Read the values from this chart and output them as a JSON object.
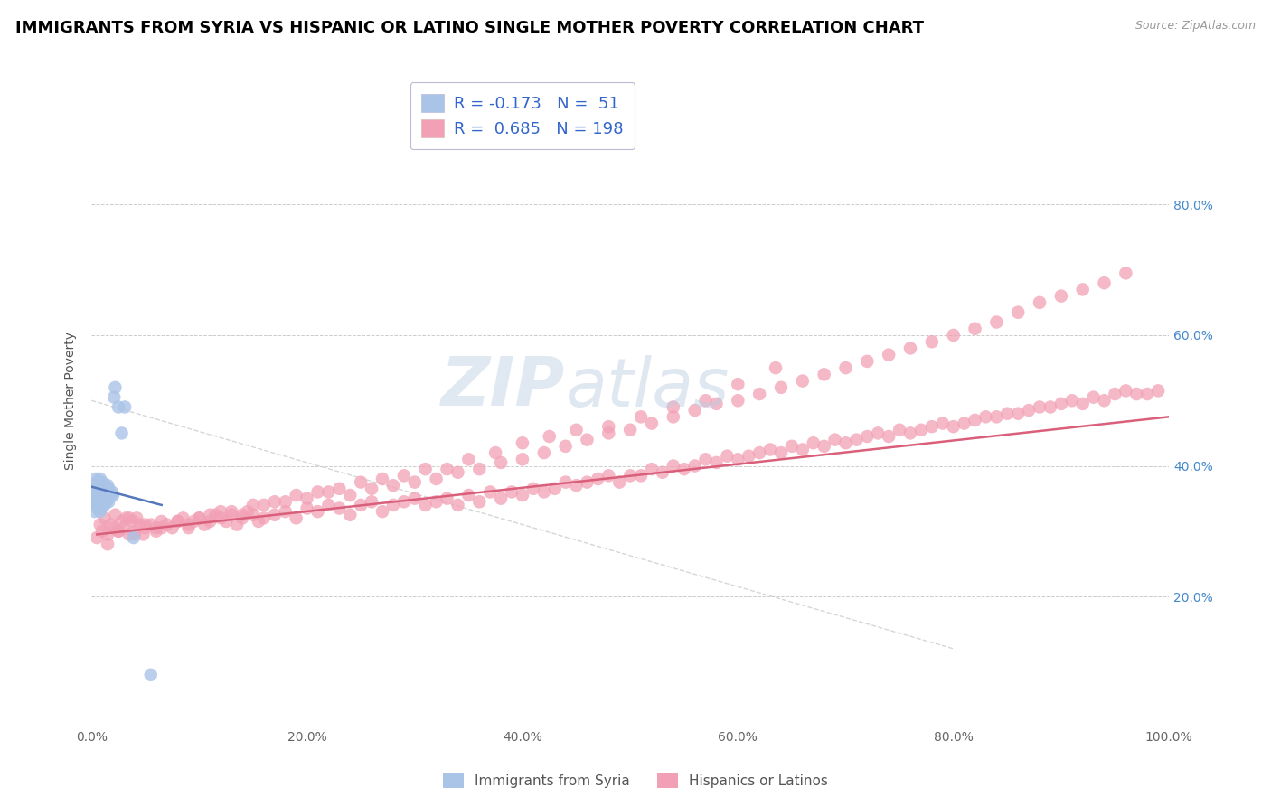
{
  "title": "IMMIGRANTS FROM SYRIA VS HISPANIC OR LATINO SINGLE MOTHER POVERTY CORRELATION CHART",
  "source": "Source: ZipAtlas.com",
  "ylabel": "Single Mother Poverty",
  "xlim": [
    0.0,
    1.0
  ],
  "ylim": [
    0.0,
    1.0
  ],
  "xticks": [
    0.0,
    0.2,
    0.4,
    0.6,
    0.8,
    1.0
  ],
  "xtick_labels": [
    "0.0%",
    "20.0%",
    "40.0%",
    "60.0%",
    "80.0%",
    "100.0%"
  ],
  "ytick_positions": [
    0.2,
    0.4,
    0.6,
    0.8
  ],
  "ytick_labels": [
    "20.0%",
    "40.0%",
    "60.0%",
    "80.0%"
  ],
  "legend_R1": "-0.173",
  "legend_N1": "51",
  "legend_R2": "0.685",
  "legend_N2": "198",
  "blue_color": "#aac4e8",
  "pink_color": "#f2a0b5",
  "blue_line_color": "#5577bb",
  "pink_line_color": "#d95f7a",
  "title_fontsize": 13,
  "axis_label_fontsize": 10,
  "tick_fontsize": 10,
  "legend_fontsize": 13,
  "blue_scatter_x": [
    0.001,
    0.002,
    0.002,
    0.003,
    0.003,
    0.003,
    0.004,
    0.004,
    0.004,
    0.005,
    0.005,
    0.005,
    0.006,
    0.006,
    0.006,
    0.007,
    0.007,
    0.007,
    0.008,
    0.008,
    0.008,
    0.008,
    0.009,
    0.009,
    0.009,
    0.01,
    0.01,
    0.01,
    0.011,
    0.011,
    0.012,
    0.012,
    0.013,
    0.013,
    0.014,
    0.014,
    0.015,
    0.015,
    0.016,
    0.016,
    0.017,
    0.018,
    0.019,
    0.02,
    0.021,
    0.022,
    0.025,
    0.028,
    0.031,
    0.039,
    0.055
  ],
  "blue_scatter_y": [
    0.34,
    0.355,
    0.37,
    0.33,
    0.35,
    0.37,
    0.34,
    0.355,
    0.38,
    0.34,
    0.36,
    0.375,
    0.335,
    0.35,
    0.37,
    0.34,
    0.36,
    0.375,
    0.33,
    0.345,
    0.36,
    0.38,
    0.335,
    0.355,
    0.37,
    0.34,
    0.355,
    0.375,
    0.345,
    0.365,
    0.34,
    0.36,
    0.35,
    0.37,
    0.345,
    0.365,
    0.35,
    0.37,
    0.345,
    0.365,
    0.36,
    0.355,
    0.36,
    0.355,
    0.505,
    0.52,
    0.49,
    0.45,
    0.49,
    0.29,
    0.08
  ],
  "pink_scatter_x": [
    0.005,
    0.008,
    0.01,
    0.012,
    0.015,
    0.018,
    0.02,
    0.022,
    0.025,
    0.028,
    0.03,
    0.032,
    0.035,
    0.038,
    0.04,
    0.042,
    0.045,
    0.048,
    0.05,
    0.055,
    0.06,
    0.065,
    0.07,
    0.075,
    0.08,
    0.085,
    0.09,
    0.095,
    0.1,
    0.105,
    0.11,
    0.115,
    0.12,
    0.125,
    0.13,
    0.135,
    0.14,
    0.145,
    0.15,
    0.155,
    0.16,
    0.17,
    0.18,
    0.19,
    0.2,
    0.21,
    0.22,
    0.23,
    0.24,
    0.25,
    0.26,
    0.27,
    0.28,
    0.29,
    0.3,
    0.31,
    0.32,
    0.33,
    0.34,
    0.35,
    0.36,
    0.37,
    0.38,
    0.39,
    0.4,
    0.41,
    0.42,
    0.43,
    0.44,
    0.45,
    0.46,
    0.47,
    0.48,
    0.49,
    0.5,
    0.51,
    0.52,
    0.53,
    0.54,
    0.55,
    0.56,
    0.57,
    0.58,
    0.59,
    0.6,
    0.61,
    0.62,
    0.63,
    0.64,
    0.65,
    0.66,
    0.67,
    0.68,
    0.69,
    0.7,
    0.71,
    0.72,
    0.73,
    0.74,
    0.75,
    0.76,
    0.77,
    0.78,
    0.79,
    0.8,
    0.81,
    0.82,
    0.83,
    0.84,
    0.85,
    0.86,
    0.87,
    0.88,
    0.89,
    0.9,
    0.91,
    0.92,
    0.93,
    0.94,
    0.95,
    0.96,
    0.97,
    0.98,
    0.99,
    0.015,
    0.025,
    0.035,
    0.05,
    0.065,
    0.08,
    0.1,
    0.12,
    0.14,
    0.16,
    0.18,
    0.2,
    0.22,
    0.24,
    0.26,
    0.28,
    0.3,
    0.32,
    0.34,
    0.36,
    0.38,
    0.4,
    0.42,
    0.44,
    0.46,
    0.48,
    0.5,
    0.52,
    0.54,
    0.56,
    0.58,
    0.6,
    0.62,
    0.64,
    0.66,
    0.68,
    0.7,
    0.72,
    0.74,
    0.76,
    0.78,
    0.8,
    0.82,
    0.84,
    0.86,
    0.88,
    0.9,
    0.92,
    0.94,
    0.96,
    0.04,
    0.06,
    0.09,
    0.11,
    0.13,
    0.15,
    0.17,
    0.19,
    0.21,
    0.23,
    0.25,
    0.27,
    0.29,
    0.31,
    0.33,
    0.35,
    0.375,
    0.4,
    0.425,
    0.45,
    0.48,
    0.51,
    0.54,
    0.57,
    0.6,
    0.635
  ],
  "pink_scatter_y": [
    0.29,
    0.31,
    0.3,
    0.32,
    0.295,
    0.31,
    0.305,
    0.325,
    0.3,
    0.315,
    0.305,
    0.32,
    0.295,
    0.315,
    0.3,
    0.32,
    0.31,
    0.295,
    0.305,
    0.31,
    0.3,
    0.315,
    0.31,
    0.305,
    0.315,
    0.32,
    0.305,
    0.315,
    0.32,
    0.31,
    0.315,
    0.325,
    0.32,
    0.315,
    0.325,
    0.31,
    0.32,
    0.33,
    0.325,
    0.315,
    0.32,
    0.325,
    0.33,
    0.32,
    0.335,
    0.33,
    0.34,
    0.335,
    0.325,
    0.34,
    0.345,
    0.33,
    0.34,
    0.345,
    0.35,
    0.34,
    0.345,
    0.35,
    0.34,
    0.355,
    0.345,
    0.36,
    0.35,
    0.36,
    0.355,
    0.365,
    0.36,
    0.365,
    0.375,
    0.37,
    0.375,
    0.38,
    0.385,
    0.375,
    0.385,
    0.385,
    0.395,
    0.39,
    0.4,
    0.395,
    0.4,
    0.41,
    0.405,
    0.415,
    0.41,
    0.415,
    0.42,
    0.425,
    0.42,
    0.43,
    0.425,
    0.435,
    0.43,
    0.44,
    0.435,
    0.44,
    0.445,
    0.45,
    0.445,
    0.455,
    0.45,
    0.455,
    0.46,
    0.465,
    0.46,
    0.465,
    0.47,
    0.475,
    0.475,
    0.48,
    0.48,
    0.485,
    0.49,
    0.49,
    0.495,
    0.5,
    0.495,
    0.505,
    0.5,
    0.51,
    0.515,
    0.51,
    0.51,
    0.515,
    0.28,
    0.3,
    0.32,
    0.31,
    0.305,
    0.315,
    0.32,
    0.33,
    0.325,
    0.34,
    0.345,
    0.35,
    0.36,
    0.355,
    0.365,
    0.37,
    0.375,
    0.38,
    0.39,
    0.395,
    0.405,
    0.41,
    0.42,
    0.43,
    0.44,
    0.45,
    0.455,
    0.465,
    0.475,
    0.485,
    0.495,
    0.5,
    0.51,
    0.52,
    0.53,
    0.54,
    0.55,
    0.56,
    0.57,
    0.58,
    0.59,
    0.6,
    0.61,
    0.62,
    0.635,
    0.65,
    0.66,
    0.67,
    0.68,
    0.695,
    0.295,
    0.305,
    0.31,
    0.325,
    0.33,
    0.34,
    0.345,
    0.355,
    0.36,
    0.365,
    0.375,
    0.38,
    0.385,
    0.395,
    0.395,
    0.41,
    0.42,
    0.435,
    0.445,
    0.455,
    0.46,
    0.475,
    0.49,
    0.5,
    0.525,
    0.55
  ]
}
